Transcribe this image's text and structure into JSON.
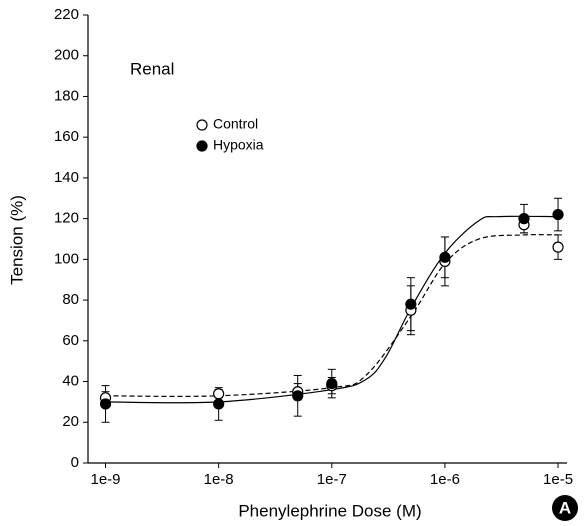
{
  "chart_data": {
    "type": "scatter",
    "x_label": "Phenylephrine Dose (M)",
    "y_label": "Tension (%)",
    "annotation": "Renal",
    "panel_label": "A",
    "x_scale": "log",
    "xlim": [
      7e-10,
      1.2e-05
    ],
    "xticks": [
      {
        "value": 1e-09,
        "label": "1e-9"
      },
      {
        "value": 1e-08,
        "label": "1e-8"
      },
      {
        "value": 1e-07,
        "label": "1e-7"
      },
      {
        "value": 1e-06,
        "label": "1e-6"
      },
      {
        "value": 1e-05,
        "label": "1e-5"
      }
    ],
    "ylim": [
      0,
      220
    ],
    "yticks": [
      0,
      20,
      40,
      60,
      80,
      100,
      120,
      140,
      160,
      180,
      200,
      220
    ],
    "x": [
      1e-09,
      1e-08,
      5e-08,
      1e-07,
      5e-07,
      1e-06,
      5e-06,
      1e-05
    ],
    "series": [
      {
        "name": "Control",
        "color": "#000000",
        "marker": "open",
        "line_style": "dashed",
        "values": [
          32,
          34,
          35,
          38,
          75,
          99,
          117,
          106
        ],
        "errors": [
          3,
          2,
          4,
          4,
          12,
          12,
          4,
          6
        ],
        "fit_x": [
          1e-09,
          1e-08,
          1e-07,
          2e-07,
          5e-07,
          1e-06,
          2e-06,
          5e-06,
          1e-05
        ],
        "fit_values": [
          33,
          33,
          37,
          43,
          72,
          98,
          110,
          112,
          112
        ]
      },
      {
        "name": "Hypoxia",
        "color": "#000000",
        "marker": "filled",
        "line_style": "solid",
        "values": [
          29,
          29,
          33,
          39,
          78,
          101,
          120,
          122
        ],
        "errors": [
          9,
          8,
          10,
          7,
          13,
          10,
          7,
          8
        ],
        "fit_x": [
          1e-09,
          1e-08,
          1e-07,
          2e-07,
          3e-07,
          5e-07,
          1e-06,
          2e-06,
          3e-06,
          1e-05
        ],
        "fit_values": [
          30,
          30,
          36,
          41,
          52,
          76,
          103,
          119,
          121,
          121
        ]
      }
    ]
  }
}
